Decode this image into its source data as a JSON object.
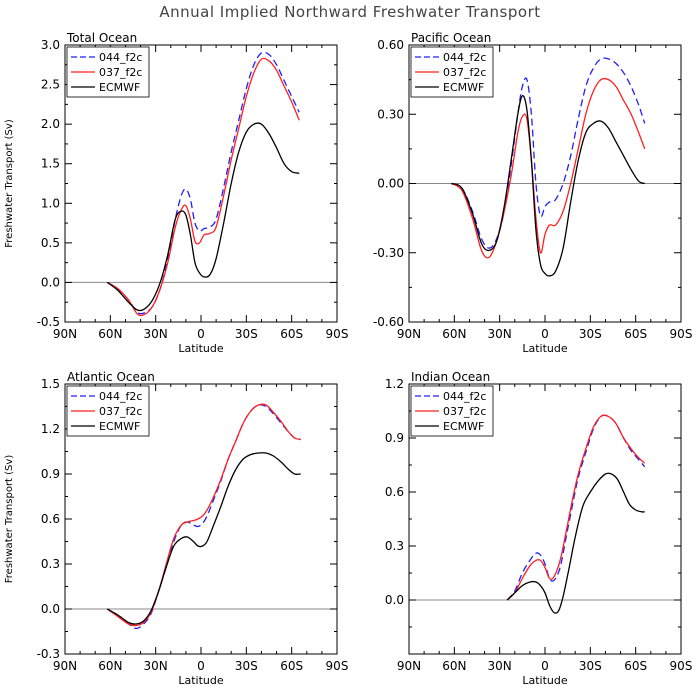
{
  "figure_title": "Annual Implied Northward Freshwater Transport",
  "colors": {
    "044_f2c": "#1f1fff",
    "037_f2c": "#ff1f1f",
    "ECMWF": "#000000",
    "zero_line": "#888888"
  },
  "chart_data": [
    {
      "type": "line",
      "title": "Total Ocean",
      "xlabel": "Latitude",
      "ylabel": "Freshwater Transport (Sv)",
      "xlim": [
        -90,
        90
      ],
      "x_ticks": [
        -90,
        -60,
        -30,
        0,
        30,
        60,
        90
      ],
      "x_tick_labels": [
        "90N",
        "60N",
        "30N",
        "0",
        "30S",
        "60S",
        "90S"
      ],
      "ylim": [
        -0.5,
        3.0
      ],
      "y_ticks": [
        -0.5,
        0.0,
        0.5,
        1.0,
        1.5,
        2.0,
        2.5,
        3.0
      ],
      "y_tick_labels": [
        "-0.5",
        "0.0",
        "0.5",
        "1.0",
        "1.5",
        "2.0",
        "2.5",
        "3.0"
      ],
      "legend": "top-left",
      "series": [
        {
          "name": "044_f2c",
          "style": "dashed",
          "x": [
            -62,
            -55,
            -48,
            -42,
            -37,
            -32,
            -27,
            -22,
            -17,
            -13,
            -10,
            -7,
            -4,
            -1,
            2,
            6,
            10,
            15,
            20,
            25,
            30,
            35,
            40,
            45,
            50,
            55,
            60,
            65
          ],
          "y": [
            0,
            -0.08,
            -0.22,
            -0.38,
            -0.38,
            -0.3,
            -0.08,
            0.3,
            0.8,
            1.1,
            1.18,
            1.05,
            0.75,
            0.65,
            0.68,
            0.7,
            0.8,
            1.2,
            1.65,
            2.05,
            2.45,
            2.75,
            2.9,
            2.88,
            2.75,
            2.55,
            2.35,
            2.15
          ]
        },
        {
          "name": "037_f2c",
          "style": "solid",
          "x": [
            -62,
            -55,
            -48,
            -42,
            -37,
            -32,
            -27,
            -22,
            -17,
            -13,
            -10,
            -7,
            -4,
            -1,
            2,
            6,
            10,
            15,
            20,
            25,
            30,
            35,
            40,
            45,
            50,
            55,
            60,
            65
          ],
          "y": [
            0,
            -0.08,
            -0.22,
            -0.4,
            -0.4,
            -0.3,
            -0.08,
            0.25,
            0.7,
            0.92,
            0.97,
            0.8,
            0.52,
            0.5,
            0.6,
            0.62,
            0.7,
            1.1,
            1.55,
            1.95,
            2.35,
            2.65,
            2.82,
            2.8,
            2.68,
            2.48,
            2.28,
            2.05
          ]
        },
        {
          "name": "ECMWF",
          "style": "solid",
          "x": [
            -62,
            -55,
            -48,
            -42,
            -37,
            -32,
            -27,
            -22,
            -17,
            -13,
            -10,
            -7,
            -4,
            -1,
            2,
            6,
            10,
            15,
            20,
            25,
            30,
            35,
            40,
            45,
            50,
            55,
            60,
            65
          ],
          "y": [
            0,
            -0.1,
            -0.25,
            -0.35,
            -0.33,
            -0.22,
            0.0,
            0.35,
            0.8,
            0.9,
            0.85,
            0.6,
            0.25,
            0.12,
            0.07,
            0.1,
            0.3,
            0.75,
            1.25,
            1.65,
            1.9,
            2.0,
            2.0,
            1.88,
            1.7,
            1.5,
            1.4,
            1.38
          ]
        }
      ]
    },
    {
      "type": "line",
      "title": "Pacific Ocean",
      "xlabel": "Latitude",
      "ylabel": "",
      "xlim": [
        -90,
        90
      ],
      "x_ticks": [
        -90,
        -60,
        -30,
        0,
        30,
        60,
        90
      ],
      "x_tick_labels": [
        "90N",
        "60N",
        "30N",
        "0",
        "30S",
        "60S",
        "90S"
      ],
      "ylim": [
        -0.6,
        0.6
      ],
      "y_ticks": [
        -0.6,
        -0.3,
        0.0,
        0.3,
        0.6
      ],
      "y_tick_labels": [
        "-0.60",
        "-0.30",
        "0.00",
        "0.30",
        "0.60"
      ],
      "legend": "top-left",
      "series": [
        {
          "name": "044_f2c",
          "style": "dashed",
          "x": [
            -62,
            -55,
            -48,
            -42,
            -37,
            -32,
            -27,
            -22,
            -18,
            -15,
            -12,
            -9,
            -6,
            -3,
            0,
            3,
            7,
            12,
            17,
            22,
            27,
            32,
            37,
            42,
            47,
            52,
            57,
            62,
            66
          ],
          "y": [
            0,
            -0.02,
            -0.12,
            -0.24,
            -0.28,
            -0.24,
            -0.12,
            0.1,
            0.3,
            0.42,
            0.45,
            0.3,
            0.0,
            -0.14,
            -0.1,
            -0.08,
            -0.07,
            0.0,
            0.12,
            0.28,
            0.42,
            0.5,
            0.54,
            0.54,
            0.52,
            0.48,
            0.42,
            0.34,
            0.26
          ]
        },
        {
          "name": "037_f2c",
          "style": "solid",
          "x": [
            -62,
            -55,
            -48,
            -42,
            -37,
            -32,
            -27,
            -22,
            -18,
            -15,
            -12,
            -9,
            -6,
            -3,
            0,
            3,
            7,
            12,
            17,
            22,
            27,
            32,
            37,
            42,
            47,
            52,
            57,
            62,
            66
          ],
          "y": [
            0,
            -0.03,
            -0.15,
            -0.29,
            -0.32,
            -0.25,
            -0.12,
            0.05,
            0.22,
            0.29,
            0.28,
            0.1,
            -0.15,
            -0.3,
            -0.22,
            -0.18,
            -0.18,
            -0.12,
            0.0,
            0.15,
            0.3,
            0.4,
            0.45,
            0.45,
            0.42,
            0.36,
            0.3,
            0.22,
            0.15
          ]
        },
        {
          "name": "ECMWF",
          "style": "solid",
          "x": [
            -62,
            -55,
            -48,
            -42,
            -37,
            -32,
            -27,
            -22,
            -18,
            -15,
            -12,
            -9,
            -6,
            -3,
            0,
            3,
            7,
            12,
            17,
            22,
            27,
            32,
            37,
            42,
            47,
            52,
            57,
            62,
            66
          ],
          "y": [
            0,
            -0.02,
            -0.13,
            -0.26,
            -0.29,
            -0.25,
            -0.1,
            0.12,
            0.3,
            0.38,
            0.32,
            0.1,
            -0.2,
            -0.35,
            -0.39,
            -0.4,
            -0.38,
            -0.28,
            -0.08,
            0.1,
            0.22,
            0.26,
            0.27,
            0.24,
            0.18,
            0.12,
            0.06,
            0.01,
            0.0
          ]
        }
      ]
    },
    {
      "type": "line",
      "title": "Atlantic Ocean",
      "xlabel": "Latitude",
      "ylabel": "Freshwater Transport (Sv)",
      "xlim": [
        -90,
        90
      ],
      "x_ticks": [
        -90,
        -60,
        -30,
        0,
        30,
        60,
        90
      ],
      "x_tick_labels": [
        "90N",
        "60N",
        "30N",
        "0",
        "30S",
        "60S",
        "90S"
      ],
      "ylim": [
        -0.3,
        1.5
      ],
      "y_ticks": [
        -0.3,
        0.0,
        0.3,
        0.6,
        0.9,
        1.2,
        1.5
      ],
      "y_tick_labels": [
        "-0.3",
        "0.0",
        "0.3",
        "0.6",
        "0.9",
        "1.2",
        "1.5"
      ],
      "legend": "top-left",
      "series": [
        {
          "name": "044_f2c",
          "style": "dashed",
          "x": [
            -62,
            -55,
            -48,
            -43,
            -38,
            -33,
            -28,
            -23,
            -18,
            -13,
            -9,
            -5,
            -2,
            1,
            4,
            8,
            13,
            18,
            23,
            28,
            33,
            38,
            43,
            48,
            53,
            58,
            62,
            66
          ],
          "y": [
            0,
            -0.05,
            -0.1,
            -0.13,
            -0.1,
            -0.03,
            0.12,
            0.28,
            0.45,
            0.56,
            0.58,
            0.56,
            0.55,
            0.57,
            0.62,
            0.72,
            0.85,
            1.0,
            1.12,
            1.24,
            1.32,
            1.36,
            1.35,
            1.3,
            1.24,
            1.18,
            1.14,
            1.13
          ]
        },
        {
          "name": "037_f2c",
          "style": "solid",
          "x": [
            -62,
            -55,
            -48,
            -43,
            -38,
            -33,
            -28,
            -23,
            -18,
            -13,
            -9,
            -5,
            -2,
            1,
            4,
            8,
            13,
            18,
            23,
            28,
            33,
            38,
            43,
            48,
            53,
            58,
            62,
            66
          ],
          "y": [
            0,
            -0.05,
            -0.1,
            -0.11,
            -0.09,
            -0.02,
            0.12,
            0.3,
            0.47,
            0.56,
            0.58,
            0.59,
            0.6,
            0.62,
            0.66,
            0.74,
            0.86,
            1.0,
            1.12,
            1.24,
            1.32,
            1.36,
            1.36,
            1.31,
            1.25,
            1.18,
            1.14,
            1.13
          ]
        },
        {
          "name": "ECMWF",
          "style": "solid",
          "x": [
            -62,
            -55,
            -48,
            -43,
            -38,
            -33,
            -28,
            -23,
            -18,
            -13,
            -9,
            -5,
            -2,
            1,
            4,
            8,
            13,
            18,
            23,
            28,
            33,
            38,
            43,
            48,
            53,
            58,
            62,
            66
          ],
          "y": [
            0,
            -0.04,
            -0.09,
            -0.1,
            -0.08,
            -0.01,
            0.12,
            0.28,
            0.42,
            0.47,
            0.48,
            0.45,
            0.42,
            0.42,
            0.45,
            0.55,
            0.68,
            0.82,
            0.93,
            1.0,
            1.03,
            1.04,
            1.04,
            1.02,
            0.98,
            0.93,
            0.9,
            0.9
          ]
        }
      ]
    },
    {
      "type": "line",
      "title": "Indian Ocean",
      "xlabel": "Latitude",
      "ylabel": "",
      "xlim": [
        -90,
        90
      ],
      "x_ticks": [
        -90,
        -60,
        -30,
        0,
        30,
        60,
        90
      ],
      "x_tick_labels": [
        "90N",
        "60N",
        "30N",
        "0",
        "30S",
        "60S",
        "90S"
      ],
      "ylim": [
        -0.3,
        1.2
      ],
      "y_ticks": [
        -0.3,
        0.0,
        0.3,
        0.6,
        0.9,
        1.2
      ],
      "y_tick_labels": [
        "",
        "0.0",
        "0.3",
        "0.6",
        "0.9",
        "1.2"
      ],
      "legend": "top-left",
      "series": [
        {
          "name": "044_f2c",
          "style": "dashed",
          "x": [
            -25,
            -20,
            -15,
            -10,
            -6,
            -3,
            0,
            3,
            6,
            10,
            14,
            18,
            22,
            27,
            32,
            37,
            42,
            47,
            52,
            57,
            62,
            66
          ],
          "y": [
            0,
            0.05,
            0.15,
            0.22,
            0.26,
            0.25,
            0.2,
            0.12,
            0.11,
            0.18,
            0.35,
            0.52,
            0.68,
            0.82,
            0.95,
            1.02,
            1.02,
            0.98,
            0.9,
            0.83,
            0.78,
            0.74
          ]
        },
        {
          "name": "037_f2c",
          "style": "solid",
          "x": [
            -25,
            -20,
            -15,
            -10,
            -6,
            -3,
            0,
            3,
            6,
            10,
            14,
            18,
            22,
            27,
            32,
            37,
            42,
            47,
            52,
            57,
            62,
            66
          ],
          "y": [
            0,
            0.04,
            0.12,
            0.19,
            0.22,
            0.22,
            0.18,
            0.12,
            0.13,
            0.22,
            0.38,
            0.55,
            0.7,
            0.84,
            0.96,
            1.02,
            1.02,
            0.98,
            0.9,
            0.84,
            0.79,
            0.76
          ]
        },
        {
          "name": "ECMWF",
          "style": "solid",
          "x": [
            -25,
            -20,
            -15,
            -10,
            -6,
            -3,
            0,
            3,
            6,
            9,
            12,
            16,
            20,
            25,
            30,
            35,
            40,
            44,
            48,
            52,
            56,
            60,
            64,
            66
          ],
          "y": [
            0,
            0.04,
            0.08,
            0.1,
            0.1,
            0.08,
            0.04,
            -0.03,
            -0.07,
            -0.06,
            0.02,
            0.18,
            0.35,
            0.52,
            0.6,
            0.66,
            0.7,
            0.7,
            0.67,
            0.6,
            0.53,
            0.5,
            0.49,
            0.49
          ]
        }
      ]
    }
  ]
}
